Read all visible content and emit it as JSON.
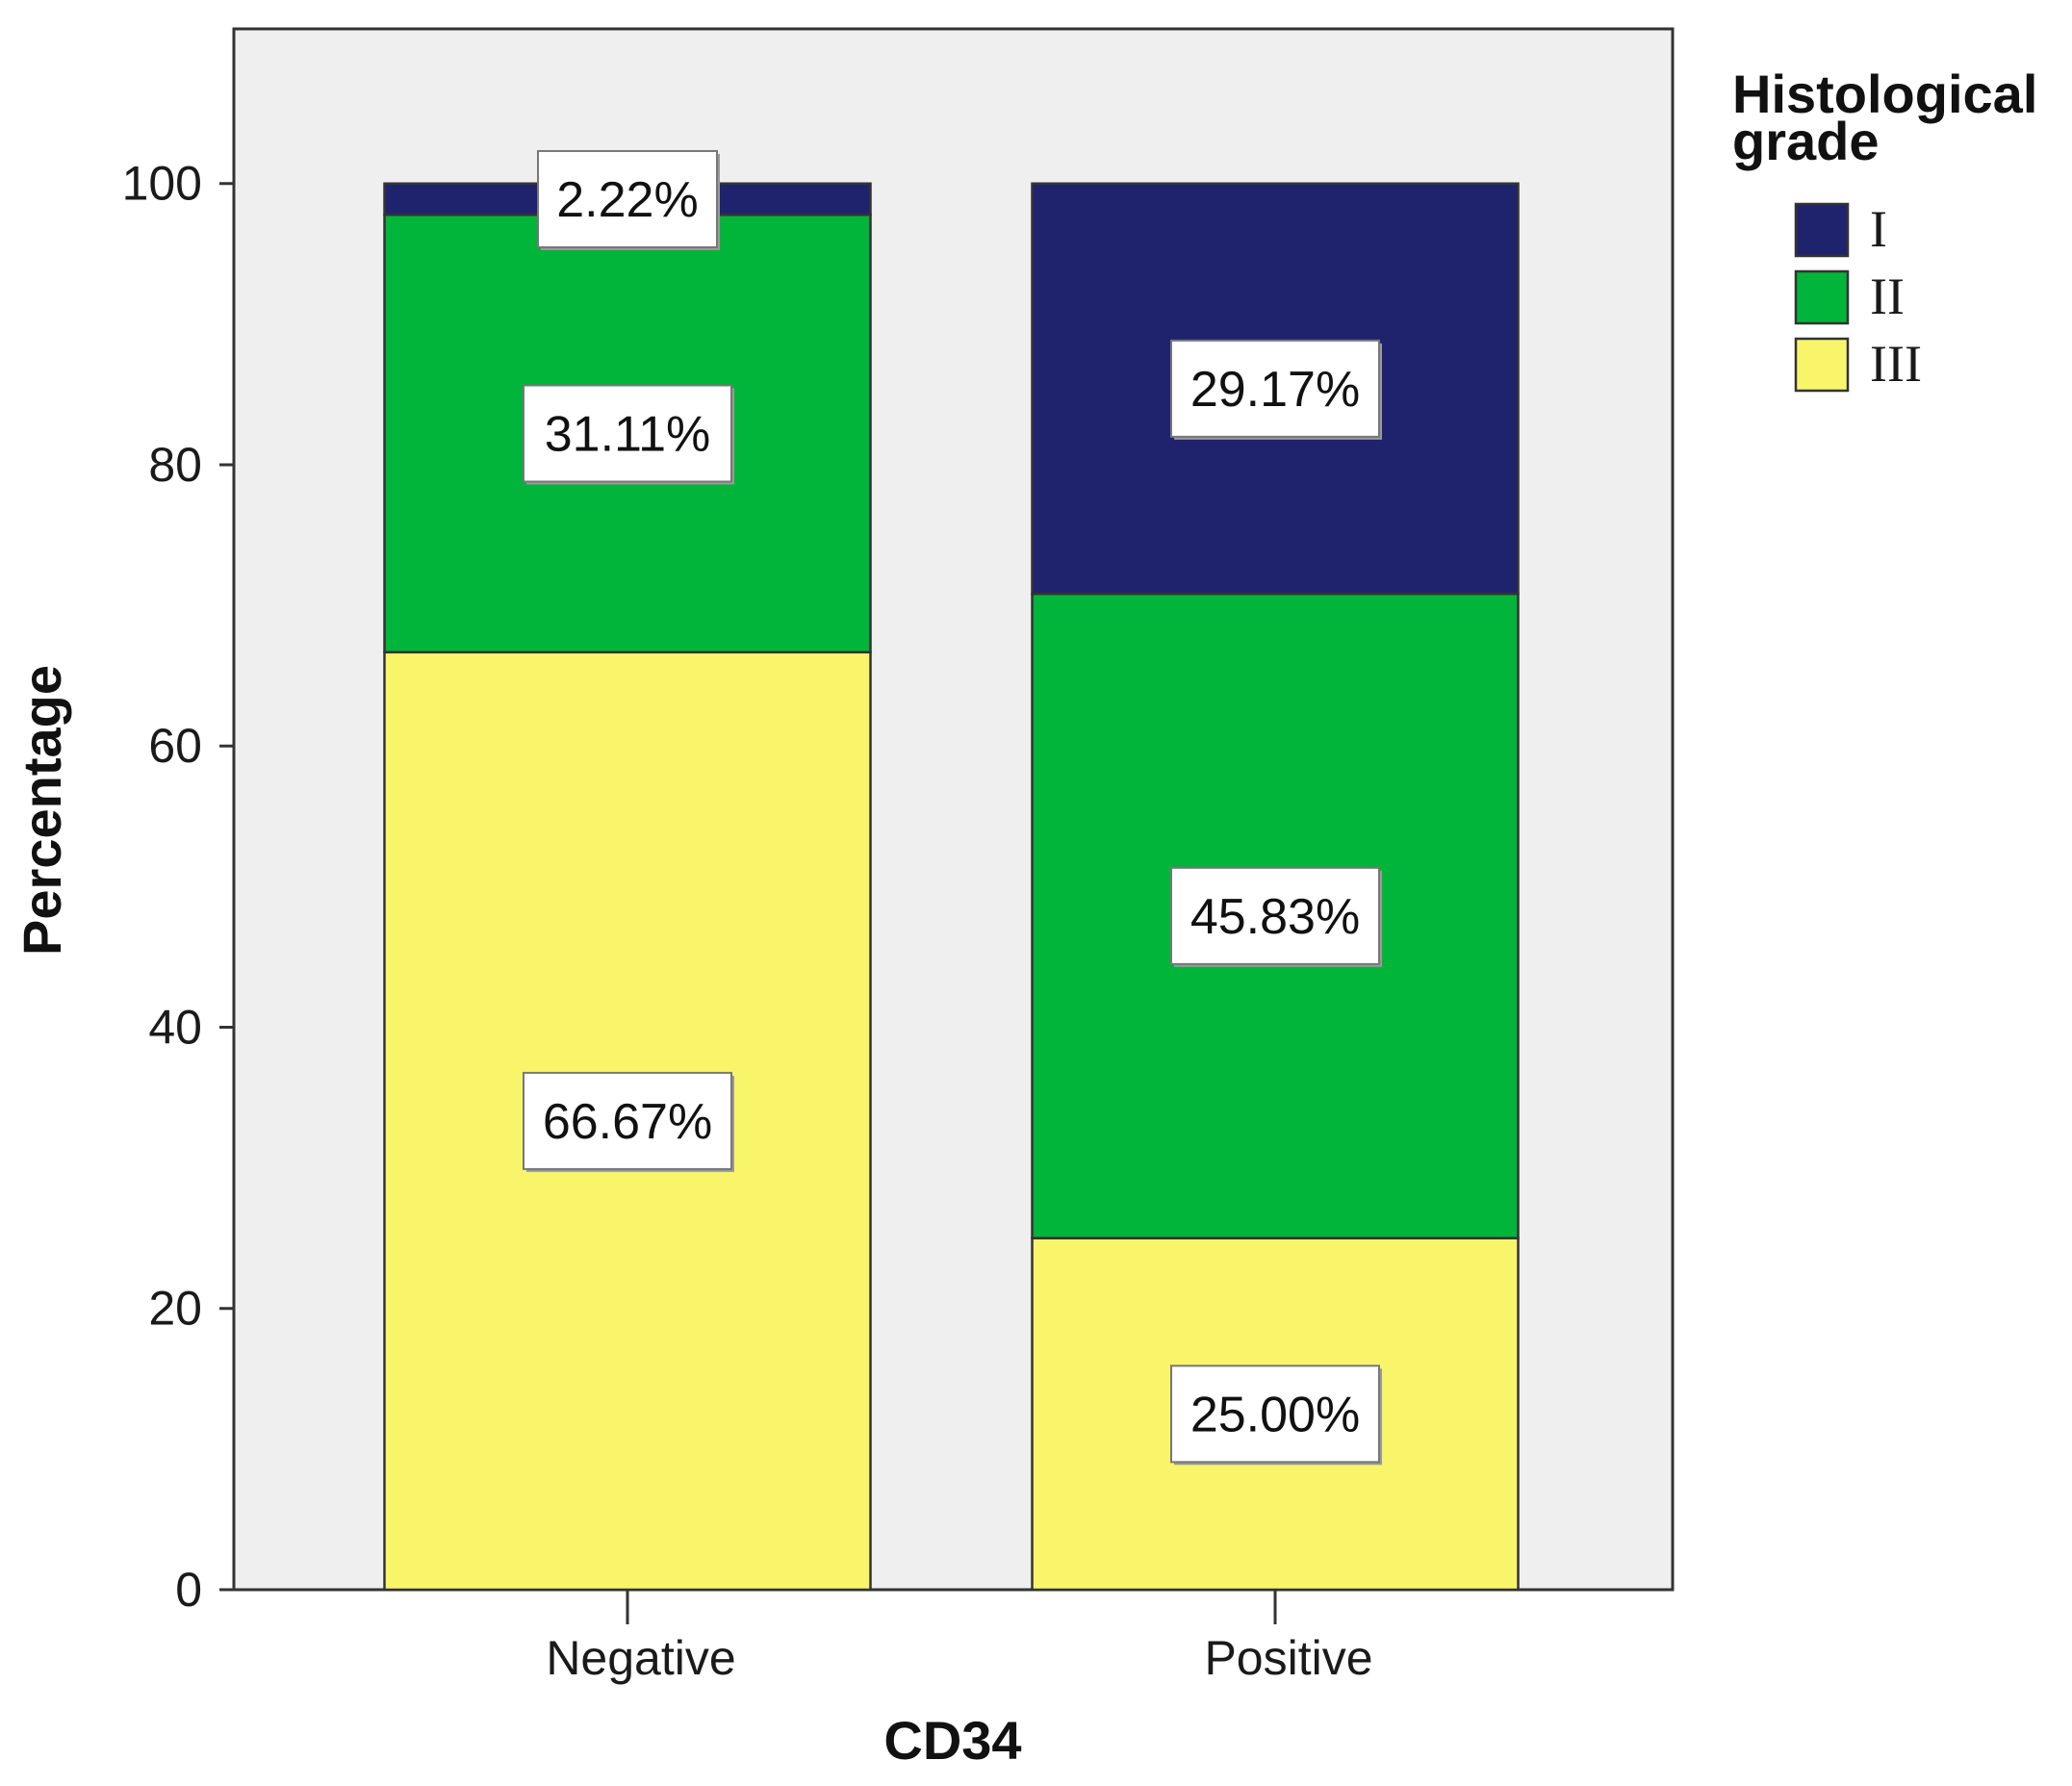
{
  "chart_data": {
    "type": "bar",
    "stacked": true,
    "title": "",
    "xlabel": "CD34",
    "ylabel": "Percentage",
    "ylim": [
      0,
      111
    ],
    "yticks": [
      0,
      20,
      40,
      60,
      80,
      100
    ],
    "categories": [
      "Negative",
      "Positive"
    ],
    "legend_title": "Histological grade",
    "legend_title_lines": [
      "Histological",
      "grade"
    ],
    "legend_position": "top-right, outside plot",
    "series": [
      {
        "name": "III",
        "color": "#f9f56b",
        "values": [
          66.67,
          25.0
        ],
        "labels": [
          "66.67%",
          "25.00%"
        ]
      },
      {
        "name": "II",
        "color": "#00b53a",
        "values": [
          31.11,
          45.83
        ],
        "labels": [
          "31.11%",
          "45.83%"
        ]
      },
      {
        "name": "I",
        "color": "#1f236e",
        "values": [
          2.22,
          29.17
        ],
        "labels": [
          "2.22%",
          "29.17%"
        ]
      }
    ],
    "legend_order": [
      "I",
      "II",
      "III"
    ],
    "plot_background": "#efefef",
    "grid": false
  }
}
